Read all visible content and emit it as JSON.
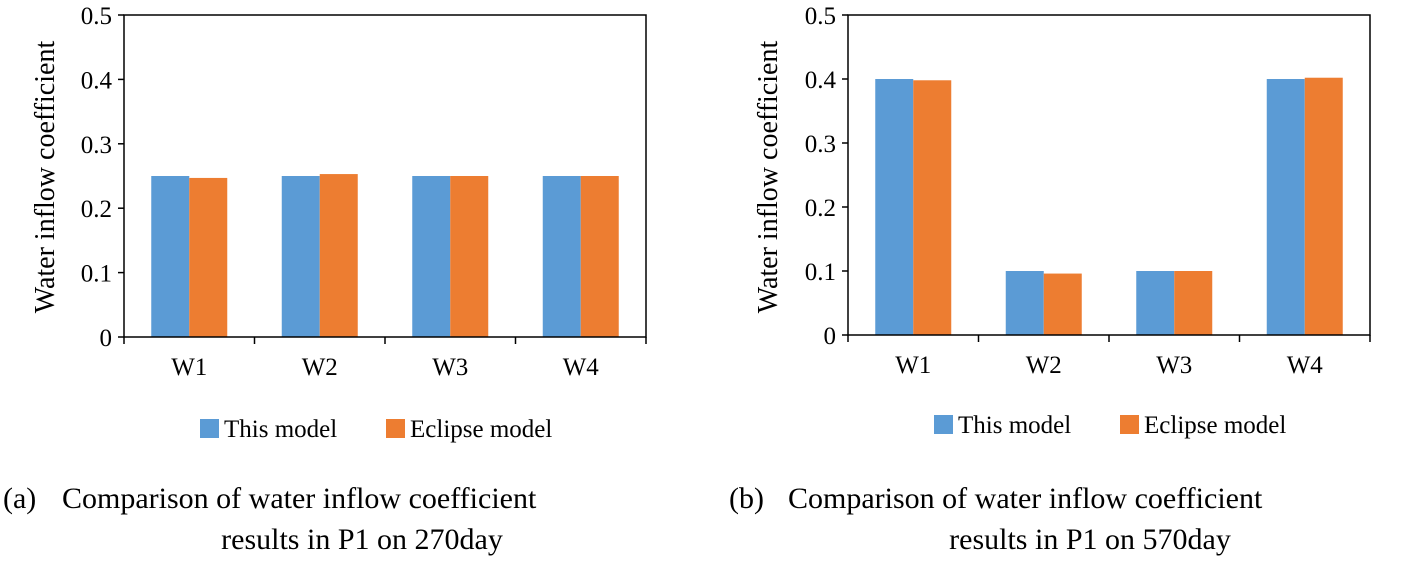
{
  "colors": {
    "this_model": "#5B9BD5",
    "eclipse_model": "#ED7D31"
  },
  "chart_data": [
    {
      "type": "bar",
      "categories": [
        "W1",
        "W2",
        "W3",
        "W4"
      ],
      "series": [
        {
          "name": "This model",
          "values": [
            0.25,
            0.25,
            0.25,
            0.25
          ]
        },
        {
          "name": "Eclipse model",
          "values": [
            0.247,
            0.253,
            0.25,
            0.25
          ]
        }
      ],
      "ylabel": "Water inflow coefficient",
      "ylim": [
        0,
        0.5
      ],
      "yticks": [
        "0",
        "0.1",
        "0.2",
        "0.3",
        "0.4",
        "0.5"
      ],
      "legend": "bottom",
      "grid": false,
      "caption_tag": "(a)",
      "caption_line1": "Comparison of water inflow coefficient",
      "caption_line2": "results in P1 on 270day"
    },
    {
      "type": "bar",
      "categories": [
        "W1",
        "W2",
        "W3",
        "W4"
      ],
      "series": [
        {
          "name": "This model",
          "values": [
            0.4,
            0.1,
            0.1,
            0.4
          ]
        },
        {
          "name": "Eclipse model",
          "values": [
            0.398,
            0.096,
            0.1,
            0.402
          ]
        }
      ],
      "ylabel": "Water inflow coefficient",
      "ylim": [
        0,
        0.5
      ],
      "yticks": [
        "0",
        "0.1",
        "0.2",
        "0.3",
        "0.4",
        "0.5"
      ],
      "legend": "bottom",
      "grid": false,
      "caption_tag": "(b)",
      "caption_line1": "Comparison of water inflow coefficient",
      "caption_line2": "results in P1 on 570day"
    }
  ]
}
